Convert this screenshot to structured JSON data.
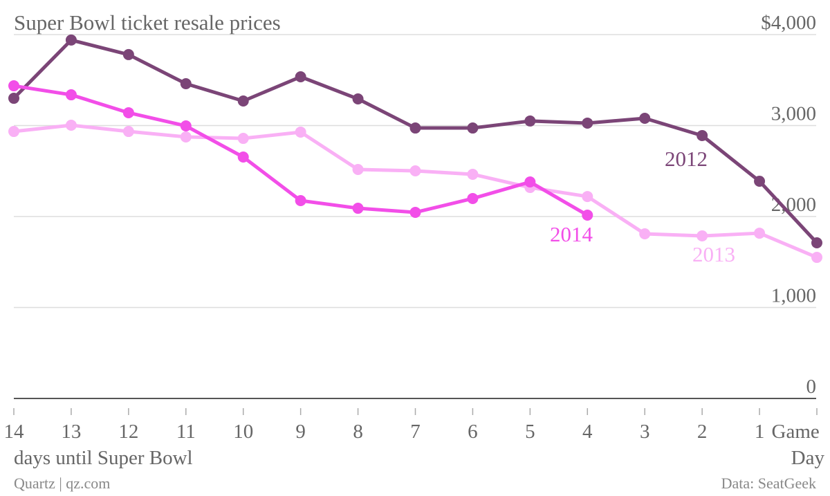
{
  "chart_data": {
    "type": "line",
    "title": "Super Bowl ticket resale prices",
    "x_label": "days until Super Bowl",
    "source": "Data: SeatGeek",
    "credit": "Quartz | qz.com",
    "categories": [
      "14",
      "13",
      "12",
      "11",
      "10",
      "9",
      "8",
      "7",
      "6",
      "5",
      "4",
      "3",
      "2",
      "1",
      "Game Day"
    ],
    "series": [
      {
        "name": "2012",
        "color": "#7b4577",
        "values": [
          3300,
          3940,
          3780,
          3460,
          3270,
          3536,
          3293,
          2973,
          2973,
          3050,
          3027,
          3080,
          2890,
          2388,
          1711
        ]
      },
      {
        "name": "2013",
        "color": "#f9b0f5",
        "values": [
          2935,
          3004,
          2935,
          2875,
          2859,
          2928,
          2517,
          2502,
          2464,
          2319,
          2220,
          1810,
          1787,
          1817,
          1551
        ]
      },
      {
        "name": "2014",
        "color": "#f24ee8",
        "values": [
          3437,
          3338,
          3141,
          2996,
          2654,
          2175,
          2091,
          2046,
          2198,
          2380,
          2015,
          null,
          null,
          null,
          null
        ]
      }
    ],
    "ylim": [
      0,
      4000
    ],
    "yticks": [
      0,
      {
        "value": 1000,
        "label": "1,000"
      },
      {
        "value": 2000,
        "label": "2,000"
      },
      {
        "value": 3000,
        "label": "3,000"
      },
      {
        "value": 4000,
        "label": "$4,000"
      }
    ],
    "grid": true
  }
}
